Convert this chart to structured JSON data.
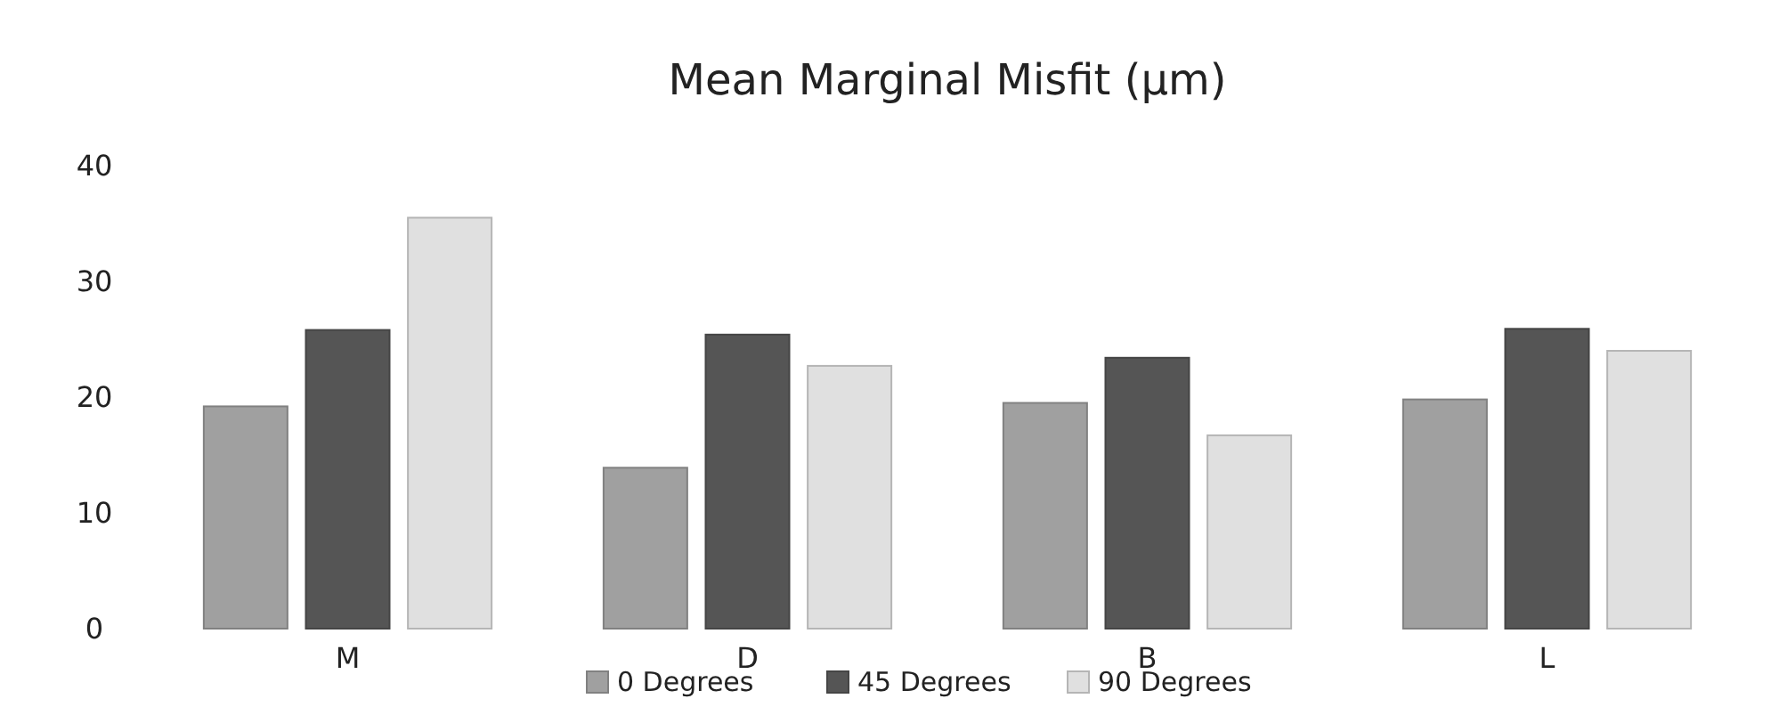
{
  "chart_data": {
    "type": "bar",
    "title": "Mean Marginal Misfit (µm)",
    "categories": [
      "M",
      "D",
      "B",
      "L"
    ],
    "series": [
      {
        "name": "0 Degrees",
        "color": "#a0a0a0",
        "values": [
          19.2,
          13.9,
          19.5,
          19.8
        ]
      },
      {
        "name": "45 Degrees",
        "color": "#555555",
        "values": [
          25.8,
          25.4,
          23.4,
          25.9
        ]
      },
      {
        "name": "90 Degrees",
        "color": "#e0e0e0",
        "values": [
          35.5,
          22.7,
          16.7,
          24.0
        ]
      }
    ],
    "ylim": [
      0,
      40
    ],
    "yticks": [
      0,
      10,
      20,
      30,
      40
    ],
    "grid": false,
    "legend": "bottom"
  }
}
